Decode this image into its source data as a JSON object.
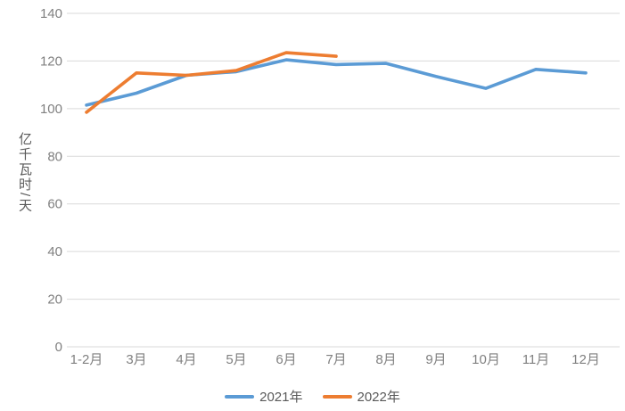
{
  "chart_data": {
    "type": "line",
    "title": "",
    "xlabel": "",
    "ylabel": "亿千瓦时/天",
    "categories": [
      "1-2月",
      "3月",
      "4月",
      "5月",
      "6月",
      "7月",
      "8月",
      "9月",
      "10月",
      "11月",
      "12月"
    ],
    "series": [
      {
        "name": "2021年",
        "color": "#5B9BD5",
        "values": [
          101.5,
          106.5,
          114,
          115.5,
          120.5,
          118.5,
          119,
          113.5,
          108.5,
          116.5,
          115
        ]
      },
      {
        "name": "2022年",
        "color": "#ED7D31",
        "values": [
          98.5,
          115,
          114,
          116,
          123.5,
          122
        ]
      }
    ],
    "ylim": [
      0,
      140
    ],
    "yticks": [
      0,
      20,
      40,
      60,
      80,
      100,
      120,
      140
    ],
    "grid": true,
    "legend_position": "bottom",
    "colors": {
      "gridline": "#D9D9D9",
      "tick_label": "#808080",
      "axis_title": "#595959",
      "legend_label": "#595959",
      "background": "#FFFFFF"
    }
  }
}
